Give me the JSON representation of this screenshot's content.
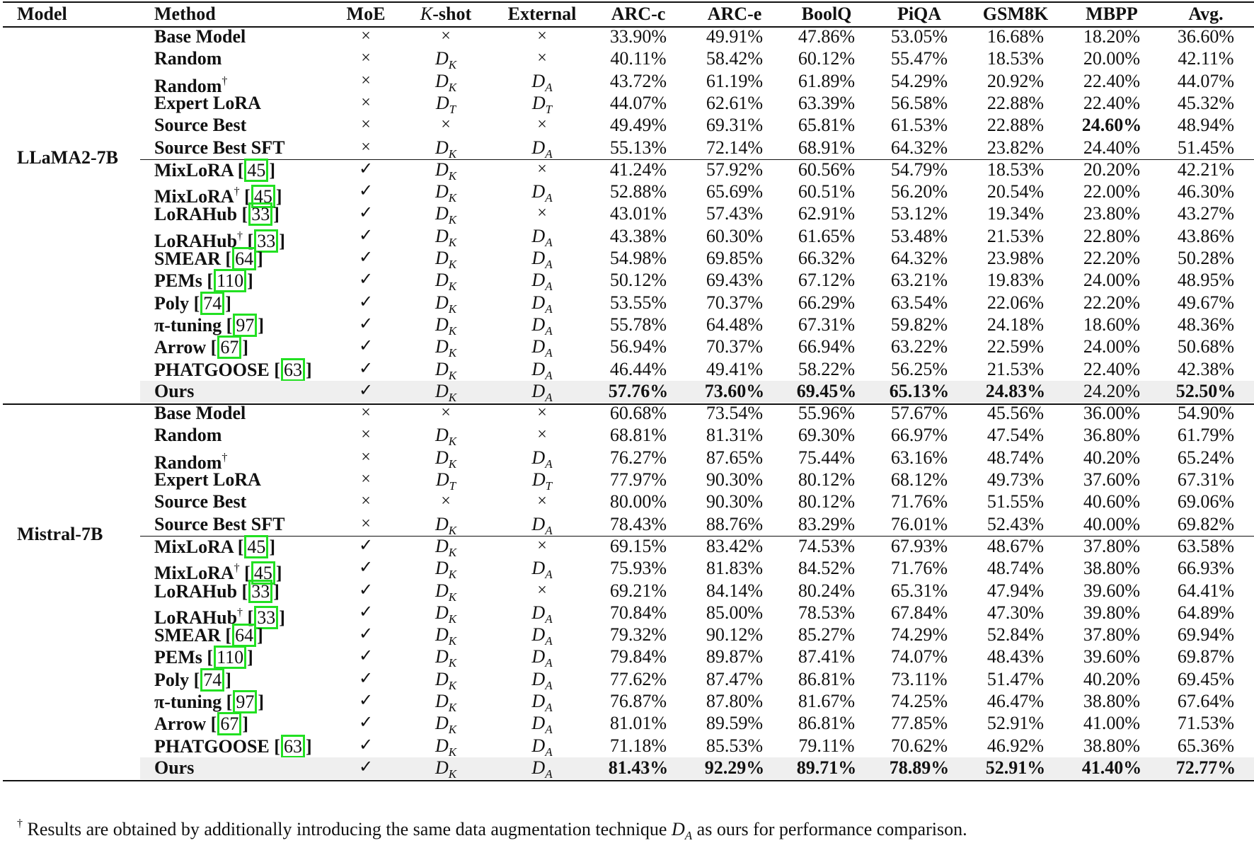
{
  "table": {
    "columns": [
      "Model",
      "Method",
      "MoE",
      "K-shot",
      "External",
      "ARC-c",
      "ARC-e",
      "BoolQ",
      "PiQA",
      "GSM8K",
      "MBPP",
      "Avg."
    ],
    "column_labels": {
      "model": "Model",
      "method": "Method",
      "moe": "MoE",
      "kshot_k": "K",
      "kshot_rest": "-shot",
      "external": "External",
      "arcc": "ARC-c",
      "arce": "ARC-e",
      "boolq": "BoolQ",
      "piqa": "PiQA",
      "gsm8k": "GSM8K",
      "mbpp": "MBPP",
      "avg": "Avg."
    },
    "groups": [
      {
        "model": "LLaMA2-7B",
        "rows": [
          {
            "method": "Base Model",
            "dagger": false,
            "cite": "",
            "moe": "×",
            "kshot": "×",
            "kshot_sub": "",
            "external": "×",
            "external_sub": "",
            "values": [
              "33.90%",
              "49.91%",
              "47.86%",
              "53.05%",
              "16.68%",
              "18.20%",
              "36.60%"
            ],
            "bold": []
          },
          {
            "method": "Random",
            "dagger": false,
            "cite": "",
            "moe": "×",
            "kshot": "D",
            "kshot_sub": "K",
            "external": "×",
            "external_sub": "",
            "values": [
              "40.11%",
              "58.42%",
              "60.12%",
              "55.47%",
              "18.53%",
              "20.00%",
              "42.11%"
            ],
            "bold": []
          },
          {
            "method": "Random",
            "dagger": true,
            "cite": "",
            "moe": "×",
            "kshot": "D",
            "kshot_sub": "K",
            "external": "D",
            "external_sub": "A",
            "values": [
              "43.72%",
              "61.19%",
              "61.89%",
              "54.29%",
              "20.92%",
              "22.40%",
              "44.07%"
            ],
            "bold": []
          },
          {
            "method": "Expert LoRA",
            "dagger": false,
            "cite": "",
            "moe": "×",
            "kshot": "D",
            "kshot_sub": "T",
            "external": "D",
            "external_sub": "T",
            "values": [
              "44.07%",
              "62.61%",
              "63.39%",
              "56.58%",
              "22.88%",
              "22.40%",
              "45.32%"
            ],
            "bold": []
          },
          {
            "method": "Source Best",
            "dagger": false,
            "cite": "",
            "moe": "×",
            "kshot": "×",
            "kshot_sub": "",
            "external": "×",
            "external_sub": "",
            "values": [
              "49.49%",
              "69.31%",
              "65.81%",
              "61.53%",
              "22.88%",
              "24.60%",
              "48.94%"
            ],
            "bold": [
              5
            ]
          },
          {
            "method": "Source Best SFT",
            "dagger": false,
            "cite": "",
            "moe": "×",
            "kshot": "D",
            "kshot_sub": "K",
            "external": "D",
            "external_sub": "A",
            "values": [
              "55.13%",
              "72.14%",
              "68.91%",
              "64.32%",
              "23.82%",
              "24.40%",
              "51.45%"
            ],
            "bold": []
          },
          {
            "method": "MixLoRA",
            "dagger": false,
            "cite": "45",
            "moe": "✓",
            "kshot": "D",
            "kshot_sub": "K",
            "external": "×",
            "external_sub": "",
            "values": [
              "41.24%",
              "57.92%",
              "60.56%",
              "54.79%",
              "18.53%",
              "20.20%",
              "42.21%"
            ],
            "bold": []
          },
          {
            "method": "MixLoRA",
            "dagger": true,
            "cite": "45",
            "moe": "✓",
            "kshot": "D",
            "kshot_sub": "K",
            "external": "D",
            "external_sub": "A",
            "values": [
              "52.88%",
              "65.69%",
              "60.51%",
              "56.20%",
              "20.54%",
              "22.00%",
              "46.30%"
            ],
            "bold": []
          },
          {
            "method": "LoRAHub",
            "dagger": false,
            "cite": "33",
            "moe": "✓",
            "kshot": "D",
            "kshot_sub": "K",
            "external": "×",
            "external_sub": "",
            "values": [
              "43.01%",
              "57.43%",
              "62.91%",
              "53.12%",
              "19.34%",
              "23.80%",
              "43.27%"
            ],
            "bold": []
          },
          {
            "method": "LoRAHub",
            "dagger": true,
            "cite": "33",
            "moe": "✓",
            "kshot": "D",
            "kshot_sub": "K",
            "external": "D",
            "external_sub": "A",
            "values": [
              "43.38%",
              "60.30%",
              "61.65%",
              "53.48%",
              "21.53%",
              "22.80%",
              "43.86%"
            ],
            "bold": []
          },
          {
            "method": "SMEAR",
            "dagger": false,
            "cite": "64",
            "moe": "✓",
            "kshot": "D",
            "kshot_sub": "K",
            "external": "D",
            "external_sub": "A",
            "values": [
              "54.98%",
              "69.85%",
              "66.32%",
              "64.32%",
              "23.98%",
              "22.20%",
              "50.28%"
            ],
            "bold": []
          },
          {
            "method": "PEMs",
            "dagger": false,
            "cite": "110",
            "moe": "✓",
            "kshot": "D",
            "kshot_sub": "K",
            "external": "D",
            "external_sub": "A",
            "values": [
              "50.12%",
              "69.43%",
              "67.12%",
              "63.21%",
              "19.83%",
              "24.00%",
              "48.95%"
            ],
            "bold": []
          },
          {
            "method": "Poly",
            "dagger": false,
            "cite": "74",
            "moe": "✓",
            "kshot": "D",
            "kshot_sub": "K",
            "external": "D",
            "external_sub": "A",
            "values": [
              "53.55%",
              "70.37%",
              "66.29%",
              "63.54%",
              "22.06%",
              "22.20%",
              "49.67%"
            ],
            "bold": []
          },
          {
            "method": "π-tuning",
            "dagger": false,
            "cite": "97",
            "moe": "✓",
            "kshot": "D",
            "kshot_sub": "K",
            "external": "D",
            "external_sub": "A",
            "values": [
              "55.78%",
              "64.48%",
              "67.31%",
              "59.82%",
              "24.18%",
              "18.60%",
              "48.36%"
            ],
            "bold": []
          },
          {
            "method": "Arrow",
            "dagger": false,
            "cite": "67",
            "moe": "✓",
            "kshot": "D",
            "kshot_sub": "K",
            "external": "D",
            "external_sub": "A",
            "values": [
              "56.94%",
              "70.37%",
              "66.94%",
              "63.22%",
              "22.59%",
              "24.00%",
              "50.68%"
            ],
            "bold": []
          },
          {
            "method": "PHATGOOSE",
            "dagger": false,
            "cite": "63",
            "moe": "✓",
            "kshot": "D",
            "kshot_sub": "K",
            "external": "D",
            "external_sub": "A",
            "values": [
              "46.44%",
              "49.41%",
              "58.22%",
              "56.25%",
              "21.53%",
              "22.40%",
              "42.38%"
            ],
            "bold": []
          },
          {
            "method": "Ours",
            "dagger": false,
            "cite": "",
            "moe": "✓",
            "kshot": "D",
            "kshot_sub": "K",
            "external": "D",
            "external_sub": "A",
            "values": [
              "57.76%",
              "73.60%",
              "69.45%",
              "65.13%",
              "24.83%",
              "24.20%",
              "52.50%"
            ],
            "bold": [
              0,
              1,
              2,
              3,
              4,
              6
            ],
            "highlight": true
          }
        ]
      },
      {
        "model": "Mistral-7B",
        "rows": [
          {
            "method": "Base Model",
            "dagger": false,
            "cite": "",
            "moe": "×",
            "kshot": "×",
            "kshot_sub": "",
            "external": "×",
            "external_sub": "",
            "values": [
              "60.68%",
              "73.54%",
              "55.96%",
              "57.67%",
              "45.56%",
              "36.00%",
              "54.90%"
            ],
            "bold": []
          },
          {
            "method": "Random",
            "dagger": false,
            "cite": "",
            "moe": "×",
            "kshot": "D",
            "kshot_sub": "K",
            "external": "×",
            "external_sub": "",
            "values": [
              "68.81%",
              "81.31%",
              "69.30%",
              "66.97%",
              "47.54%",
              "36.80%",
              "61.79%"
            ],
            "bold": []
          },
          {
            "method": "Random",
            "dagger": true,
            "cite": "",
            "moe": "×",
            "kshot": "D",
            "kshot_sub": "K",
            "external": "D",
            "external_sub": "A",
            "values": [
              "76.27%",
              "87.65%",
              "75.44%",
              "63.16%",
              "48.74%",
              "40.20%",
              "65.24%"
            ],
            "bold": []
          },
          {
            "method": "Expert LoRA",
            "dagger": false,
            "cite": "",
            "moe": "×",
            "kshot": "D",
            "kshot_sub": "T",
            "external": "D",
            "external_sub": "T",
            "values": [
              "77.97%",
              "90.30%",
              "80.12%",
              "68.12%",
              "49.73%",
              "37.60%",
              "67.31%"
            ],
            "bold": []
          },
          {
            "method": "Source Best",
            "dagger": false,
            "cite": "",
            "moe": "×",
            "kshot": "×",
            "kshot_sub": "",
            "external": "×",
            "external_sub": "",
            "values": [
              "80.00%",
              "90.30%",
              "80.12%",
              "71.76%",
              "51.55%",
              "40.60%",
              "69.06%"
            ],
            "bold": []
          },
          {
            "method": "Source Best SFT",
            "dagger": false,
            "cite": "",
            "moe": "×",
            "kshot": "D",
            "kshot_sub": "K",
            "external": "D",
            "external_sub": "A",
            "values": [
              "78.43%",
              "88.76%",
              "83.29%",
              "76.01%",
              "52.43%",
              "40.00%",
              "69.82%"
            ],
            "bold": []
          },
          {
            "method": "MixLoRA",
            "dagger": false,
            "cite": "45",
            "moe": "✓",
            "kshot": "D",
            "kshot_sub": "K",
            "external": "×",
            "external_sub": "",
            "values": [
              "69.15%",
              "83.42%",
              "74.53%",
              "67.93%",
              "48.67%",
              "37.80%",
              "63.58%"
            ],
            "bold": []
          },
          {
            "method": "MixLoRA",
            "dagger": true,
            "cite": "45",
            "moe": "✓",
            "kshot": "D",
            "kshot_sub": "K",
            "external": "D",
            "external_sub": "A",
            "values": [
              "75.93%",
              "81.83%",
              "84.52%",
              "71.76%",
              "48.74%",
              "38.80%",
              "66.93%"
            ],
            "bold": []
          },
          {
            "method": "LoRAHub",
            "dagger": false,
            "cite": "33",
            "moe": "✓",
            "kshot": "D",
            "kshot_sub": "K",
            "external": "×",
            "external_sub": "",
            "values": [
              "69.21%",
              "84.14%",
              "80.24%",
              "65.31%",
              "47.94%",
              "39.60%",
              "64.41%"
            ],
            "bold": []
          },
          {
            "method": "LoRAHub",
            "dagger": true,
            "cite": "33",
            "moe": "✓",
            "kshot": "D",
            "kshot_sub": "K",
            "external": "D",
            "external_sub": "A",
            "values": [
              "70.84%",
              "85.00%",
              "78.53%",
              "67.84%",
              "47.30%",
              "39.80%",
              "64.89%"
            ],
            "bold": []
          },
          {
            "method": "SMEAR",
            "dagger": false,
            "cite": "64",
            "moe": "✓",
            "kshot": "D",
            "kshot_sub": "K",
            "external": "D",
            "external_sub": "A",
            "values": [
              "79.32%",
              "90.12%",
              "85.27%",
              "74.29%",
              "52.84%",
              "37.80%",
              "69.94%"
            ],
            "bold": []
          },
          {
            "method": "PEMs",
            "dagger": false,
            "cite": "110",
            "moe": "✓",
            "kshot": "D",
            "kshot_sub": "K",
            "external": "D",
            "external_sub": "A",
            "values": [
              "79.84%",
              "89.87%",
              "87.41%",
              "74.07%",
              "48.43%",
              "39.60%",
              "69.87%"
            ],
            "bold": []
          },
          {
            "method": "Poly",
            "dagger": false,
            "cite": "74",
            "moe": "✓",
            "kshot": "D",
            "kshot_sub": "K",
            "external": "D",
            "external_sub": "A",
            "values": [
              "77.62%",
              "87.47%",
              "86.81%",
              "73.11%",
              "51.47%",
              "40.20%",
              "69.45%"
            ],
            "bold": []
          },
          {
            "method": "π-tuning",
            "dagger": false,
            "cite": "97",
            "moe": "✓",
            "kshot": "D",
            "kshot_sub": "K",
            "external": "D",
            "external_sub": "A",
            "values": [
              "76.87%",
              "87.80%",
              "81.67%",
              "74.25%",
              "46.47%",
              "38.80%",
              "67.64%"
            ],
            "bold": []
          },
          {
            "method": "Arrow",
            "dagger": false,
            "cite": "67",
            "moe": "✓",
            "kshot": "D",
            "kshot_sub": "K",
            "external": "D",
            "external_sub": "A",
            "values": [
              "81.01%",
              "89.59%",
              "86.81%",
              "77.85%",
              "52.91%",
              "41.00%",
              "71.53%"
            ],
            "bold": []
          },
          {
            "method": "PHATGOOSE",
            "dagger": false,
            "cite": "63",
            "moe": "✓",
            "kshot": "D",
            "kshot_sub": "K",
            "external": "D",
            "external_sub": "A",
            "values": [
              "71.18%",
              "85.53%",
              "79.11%",
              "70.62%",
              "46.92%",
              "38.80%",
              "65.36%"
            ],
            "bold": []
          },
          {
            "method": "Ours",
            "dagger": false,
            "cite": "",
            "moe": "✓",
            "kshot": "D",
            "kshot_sub": "K",
            "external": "D",
            "external_sub": "A",
            "values": [
              "81.43%",
              "92.29%",
              "89.71%",
              "78.89%",
              "52.91%",
              "41.40%",
              "72.77%"
            ],
            "bold": [
              0,
              1,
              2,
              3,
              4,
              5,
              6
            ],
            "highlight": true
          }
        ]
      }
    ]
  },
  "footnote": {
    "dagger": "†",
    "text_before": "Results are obtained by additionally introducing the same data augmentation technique ",
    "math": "D",
    "math_sub": "A",
    "text_after": " as ours for performance comparison."
  }
}
